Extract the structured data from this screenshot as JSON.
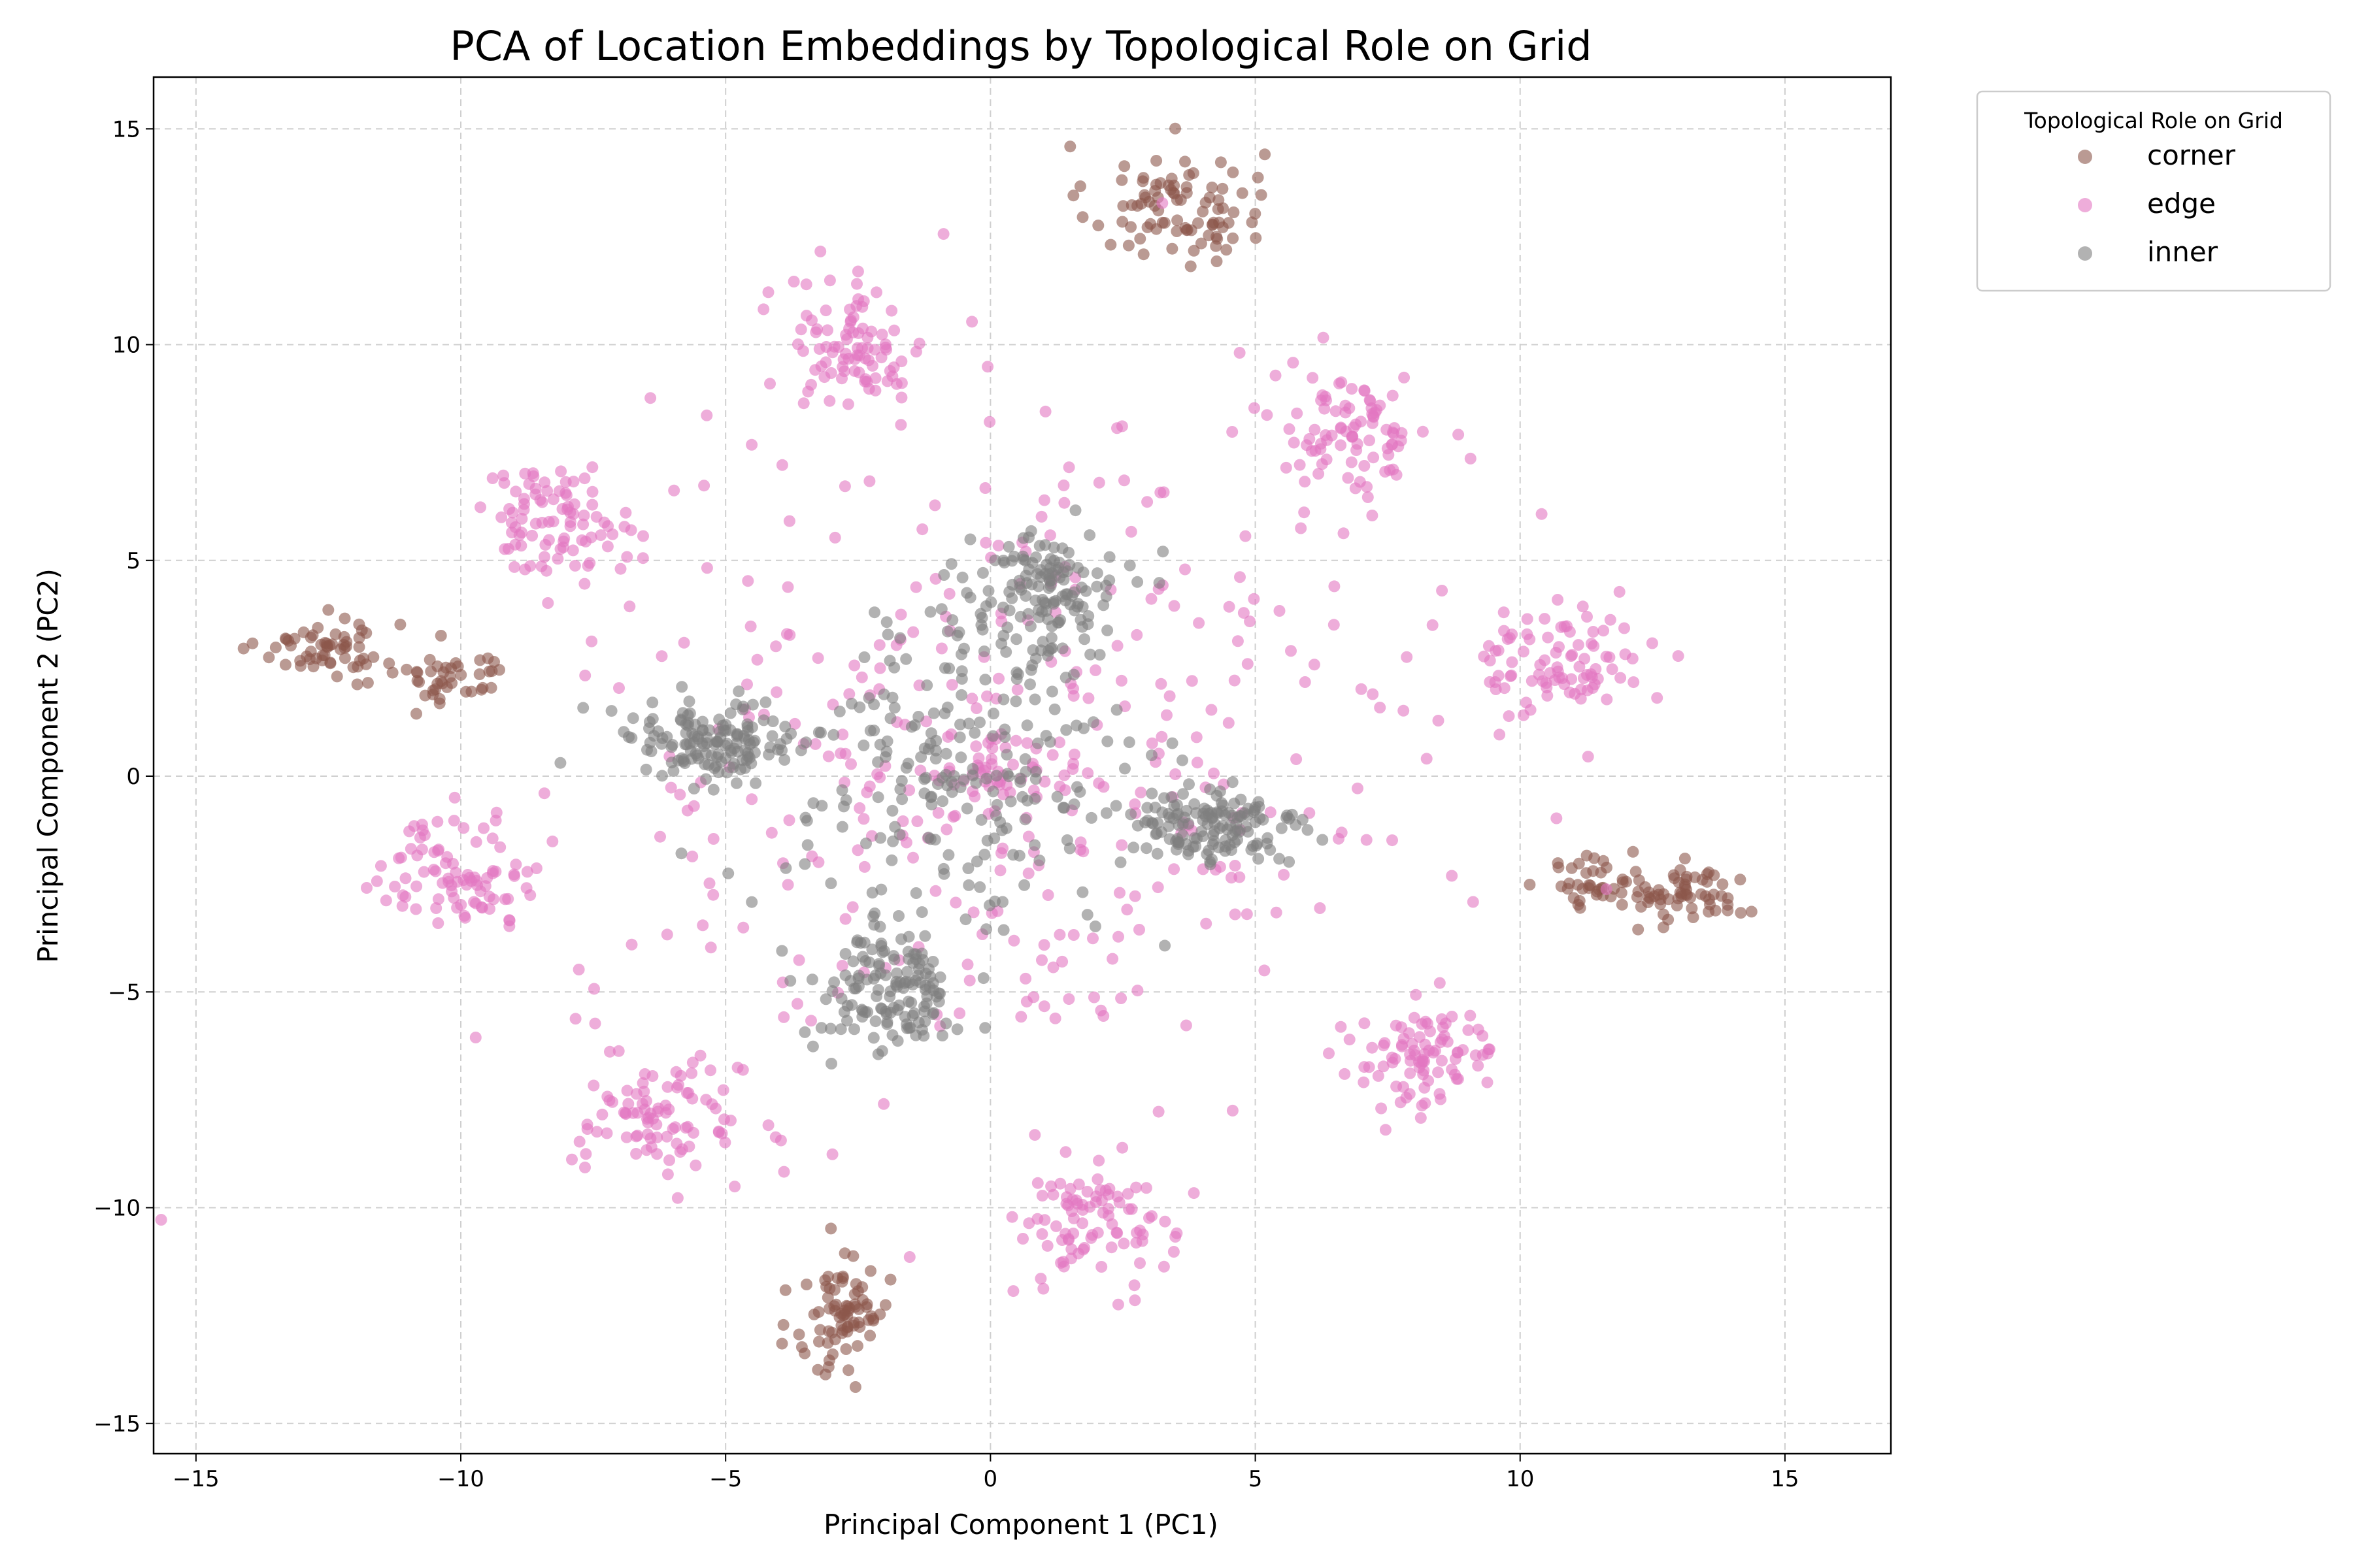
{
  "chart_data": {
    "type": "scatter",
    "title": "PCA of Location Embeddings by Topological Role on Grid",
    "xlabel": "Principal Component 1 (PC1)",
    "ylabel": "Principal Component 2 (PC2)",
    "xlim": [
      -15.8,
      17.0
    ],
    "ylim": [
      -15.7,
      16.2
    ],
    "xticks": [
      -15,
      -10,
      -5,
      0,
      5,
      10,
      15
    ],
    "yticks": [
      -15,
      -10,
      -5,
      0,
      5,
      10,
      15
    ],
    "xtick_labels": [
      "−15",
      "−10",
      "−5",
      "0",
      "5",
      "10",
      "15"
    ],
    "ytick_labels": [
      "−15",
      "−10",
      "−5",
      "0",
      "5",
      "10",
      "15"
    ],
    "grid": true,
    "legend": {
      "title": "Topological Role on Grid",
      "placement": "outside-upper-right"
    },
    "series": [
      {
        "name": "corner",
        "color": "#8c564b",
        "clusters": [
          {
            "center": [
              3.5,
              13.2
            ],
            "spread": [
              1.5,
              1.3
            ],
            "n": 90
          },
          {
            "center": [
              -12.5,
              3.0
            ],
            "spread": [
              1.2,
              0.6
            ],
            "n": 60
          },
          {
            "center": [
              -10.2,
              2.3
            ],
            "spread": [
              1.0,
              0.6
            ],
            "n": 40
          },
          {
            "center": [
              13.2,
              -2.8
            ],
            "spread": [
              1.2,
              0.6
            ],
            "n": 60
          },
          {
            "center": [
              11.5,
              -2.4
            ],
            "spread": [
              1.0,
              0.6
            ],
            "n": 40
          },
          {
            "center": [
              -2.8,
              -12.5
            ],
            "spread": [
              0.8,
              1.4
            ],
            "n": 80
          }
        ]
      },
      {
        "name": "edge",
        "color": "#e377c2",
        "clusters": [
          {
            "center": [
              -2.5,
              10.0
            ],
            "spread": [
              1.2,
              1.4
            ],
            "n": 90
          },
          {
            "center": [
              6.8,
              8.0
            ],
            "spread": [
              1.4,
              1.3
            ],
            "n": 90
          },
          {
            "center": [
              -8.2,
              6.0
            ],
            "spread": [
              1.4,
              1.1
            ],
            "n": 90
          },
          {
            "center": [
              10.8,
              2.6
            ],
            "spread": [
              1.4,
              1.2
            ],
            "n": 90
          },
          {
            "center": [
              -10.0,
              -2.2
            ],
            "spread": [
              1.4,
              1.2
            ],
            "n": 90
          },
          {
            "center": [
              8.2,
              -6.5
            ],
            "spread": [
              1.4,
              1.1
            ],
            "n": 90
          },
          {
            "center": [
              -6.2,
              -8.0
            ],
            "spread": [
              1.4,
              1.2
            ],
            "n": 90
          },
          {
            "center": [
              2.0,
              -10.3
            ],
            "spread": [
              1.3,
              1.3
            ],
            "n": 90
          },
          {
            "center": [
              0.0,
              0.0
            ],
            "spread": [
              0.8,
              0.7
            ],
            "n": 30
          },
          {
            "center": [
              0.5,
              0.5
            ],
            "spread": [
              7.5,
              7.0
            ],
            "n": 380
          }
        ]
      },
      {
        "name": "inner",
        "color": "#7f7f7f",
        "clusters": [
          {
            "center": [
              1.0,
              4.2
            ],
            "spread": [
              1.3,
              1.3
            ],
            "n": 140
          },
          {
            "center": [
              -5.3,
              0.8
            ],
            "spread": [
              1.6,
              0.9
            ],
            "n": 140
          },
          {
            "center": [
              4.2,
              -1.2
            ],
            "spread": [
              1.6,
              0.9
            ],
            "n": 140
          },
          {
            "center": [
              -2.0,
              -5.0
            ],
            "spread": [
              1.3,
              1.3
            ],
            "n": 140
          },
          {
            "center": [
              -0.5,
              0.0
            ],
            "spread": [
              3.2,
              3.2
            ],
            "n": 220
          }
        ]
      }
    ]
  }
}
